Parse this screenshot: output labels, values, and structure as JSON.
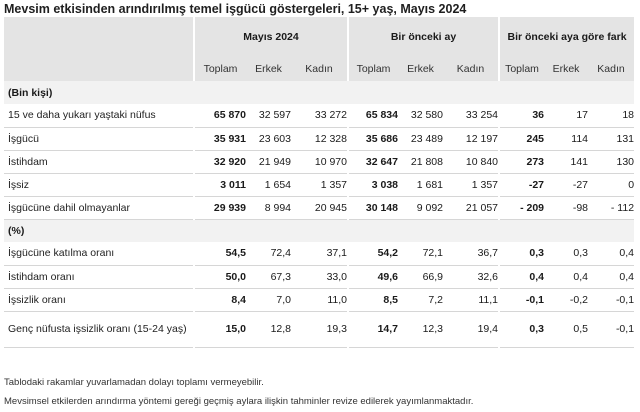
{
  "title": "Mevsim etkisinden arındırılmış temel işgücü göstergeleri, 15+ yaş, Mayıs 2024",
  "groups": [
    "Mayıs 2024",
    "Bir önceki ay",
    "Bir önceki aya göre fark"
  ],
  "subheaders": [
    "Toplam",
    "Erkek",
    "Kadın",
    "Toplam",
    "Erkek",
    "Kadın",
    "Toplam",
    "Erkek",
    "Kadın"
  ],
  "section1": "(Bin kişi)",
  "section2": "(%)",
  "rows1": [
    {
      "label": "15 ve daha yukarı yaştaki nüfus",
      "values": [
        "65 870",
        "32 597",
        "33 272",
        "65 834",
        "32 580",
        "33 254",
        "36",
        "17",
        "18"
      ]
    },
    {
      "label": "İşgücü",
      "values": [
        "35 931",
        "23 603",
        "12 328",
        "35 686",
        "23 489",
        "12 197",
        "245",
        "114",
        "131"
      ]
    },
    {
      "label": "İstihdam",
      "values": [
        "32 920",
        "21 949",
        "10 970",
        "32 647",
        "21 808",
        "10 840",
        "273",
        "141",
        "130"
      ]
    },
    {
      "label": "İşsiz",
      "values": [
        "3 011",
        "1 654",
        "1 357",
        "3 038",
        "1 681",
        "1 357",
        "-27",
        "-27",
        "0"
      ]
    },
    {
      "label": "İşgücüne dahil olmayanlar",
      "values": [
        "29 939",
        "8 994",
        "20 945",
        "30 148",
        "9 092",
        "21 057",
        "- 209",
        "-98",
        "- 112"
      ]
    }
  ],
  "rows2": [
    {
      "label": "İşgücüne katılma oranı",
      "values": [
        "54,5",
        "72,4",
        "37,1",
        "54,2",
        "72,1",
        "36,7",
        "0,3",
        "0,3",
        "0,4"
      ]
    },
    {
      "label": "İstihdam oranı",
      "values": [
        "50,0",
        "67,3",
        "33,0",
        "49,6",
        "66,9",
        "32,6",
        "0,4",
        "0,4",
        "0,4"
      ]
    },
    {
      "label": "İşsizlik oranı",
      "values": [
        "8,4",
        "7,0",
        "11,0",
        "8,5",
        "7,2",
        "11,1",
        "-0,1",
        "-0,2",
        "-0,1"
      ]
    },
    {
      "label": "Genç nüfusta işsizlik oranı (15-24 yaş)",
      "values": [
        "15,0",
        "12,8",
        "19,3",
        "14,7",
        "12,3",
        "19,4",
        "0,3",
        "0,5",
        "-0,1"
      ]
    }
  ],
  "notes": [
    "Tablodaki rakamlar yuvarlamadan dolayı toplamı vermeyebilir.",
    "Mevsimsel etkilerden arındırma yöntemi gereği geçmiş aylara ilişkin tahminler revize edilerek yayımlanmaktadır."
  ]
}
